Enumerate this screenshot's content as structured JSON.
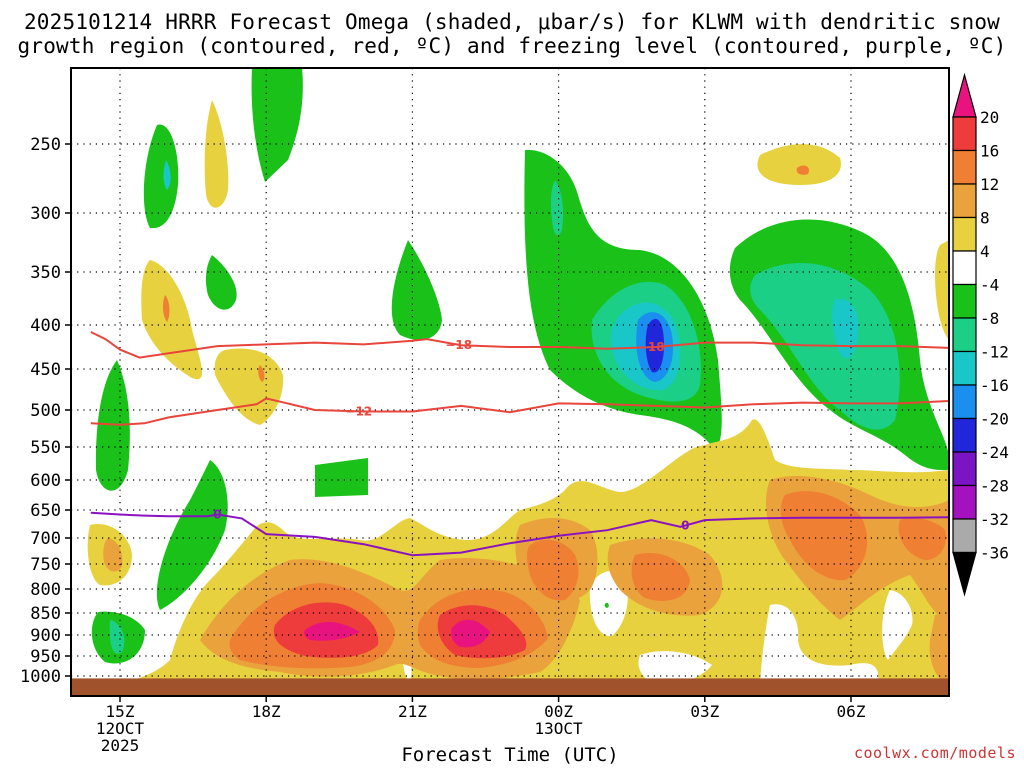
{
  "title_line1": "2025101214 HRRR Forecast Omega (shaded, μbar/s) for KLWM with dendritic snow",
  "title_line2": "growth region (contoured, red, ºC) and freezing level (contoured, purple, ºC)",
  "x_axis_title": "Forecast Time (UTC)",
  "credit": "coolwx.com/models",
  "chart_data": {
    "type": "heatmap",
    "title": "2025101214 HRRR Forecast Omega (shaded, μbar/s) for KLWM with dendritic snow growth region (contoured, red, ºC) and freezing level (contoured, purple, ºC)",
    "xlabel": "Forecast Time (UTC)",
    "ylabel": "",
    "y_scale": "pressure (inverted, log-like)",
    "y_ticks": [
      250,
      300,
      350,
      400,
      450,
      500,
      550,
      600,
      650,
      700,
      750,
      800,
      850,
      900,
      950,
      1000
    ],
    "y_range": [
      200,
      1025
    ],
    "x_range_hours": [
      14.4,
      32.8
    ],
    "x_ticks": [
      {
        "hour": 15,
        "label": "15Z",
        "sub": [
          "12OCT",
          "2025"
        ]
      },
      {
        "hour": 18,
        "label": "18Z",
        "sub": []
      },
      {
        "hour": 21,
        "label": "21Z",
        "sub": []
      },
      {
        "hour": 24,
        "label": "00Z",
        "sub": [
          "13OCT"
        ]
      },
      {
        "hour": 27,
        "label": "03Z",
        "sub": []
      },
      {
        "hour": 30,
        "label": "06Z",
        "sub": []
      }
    ],
    "grid": true,
    "colorbar": {
      "labels": [
        "20",
        "16",
        "12",
        "8",
        "4",
        "-4",
        "-8",
        "-12",
        "-16",
        "-20",
        "-24",
        "-28",
        "-32",
        "-36"
      ],
      "colors": [
        "#e8137e",
        "#ee3b3b",
        "#ef7f33",
        "#e9a23c",
        "#e7d13e",
        "#ffffff",
        "#19c119",
        "#1ccf86",
        "#19c7c9",
        "#1a8ff0",
        "#2226db",
        "#7a14c5",
        "#a412c0",
        "#aaaaaa",
        "#000000"
      ]
    },
    "contours": [
      {
        "name": "-18",
        "color": "#e8453c",
        "points": [
          [
            14.4,
            408
          ],
          [
            14.7,
            416
          ],
          [
            15.0,
            428
          ],
          [
            15.4,
            437
          ],
          [
            16.0,
            432
          ],
          [
            17.0,
            424
          ],
          [
            18.0,
            422
          ],
          [
            19.0,
            420
          ],
          [
            20.0,
            422
          ],
          [
            21.0,
            418
          ],
          [
            21.3,
            416
          ],
          [
            22.0,
            423
          ],
          [
            23.0,
            425
          ],
          [
            24.0,
            425
          ],
          [
            25.0,
            427
          ],
          [
            26.0,
            425
          ],
          [
            27.0,
            420
          ],
          [
            28.0,
            420
          ],
          [
            29.0,
            423
          ],
          [
            30.0,
            424
          ],
          [
            31.0,
            424
          ],
          [
            32.0,
            426
          ],
          [
            32.8,
            430
          ]
        ]
      },
      {
        "name": "-12",
        "color": "#e8453c",
        "points": [
          [
            14.4,
            518
          ],
          [
            15.0,
            520
          ],
          [
            15.5,
            518
          ],
          [
            16.0,
            510
          ],
          [
            17.0,
            500
          ],
          [
            17.8,
            493
          ],
          [
            18.0,
            486
          ],
          [
            18.3,
            490
          ],
          [
            19.0,
            500
          ],
          [
            20.0,
            502
          ],
          [
            21.0,
            502
          ],
          [
            22.0,
            495
          ],
          [
            23.0,
            503
          ],
          [
            24.0,
            492
          ],
          [
            25.0,
            493
          ],
          [
            26.0,
            495
          ],
          [
            27.0,
            497
          ],
          [
            28.0,
            493
          ],
          [
            29.0,
            491
          ],
          [
            30.0,
            492
          ],
          [
            31.0,
            492
          ],
          [
            32.0,
            489
          ],
          [
            32.8,
            480
          ]
        ]
      },
      {
        "name": "0",
        "color": "#8b12c0",
        "points": [
          [
            14.4,
            655
          ],
          [
            15.0,
            658
          ],
          [
            15.5,
            660
          ],
          [
            16.0,
            661
          ],
          [
            16.8,
            661
          ],
          [
            17.0,
            658
          ],
          [
            17.5,
            665
          ],
          [
            18.0,
            693
          ],
          [
            19.0,
            698
          ],
          [
            20.0,
            712
          ],
          [
            21.0,
            733
          ],
          [
            22.0,
            728
          ],
          [
            23.0,
            710
          ],
          [
            24.0,
            696
          ],
          [
            25.0,
            686
          ],
          [
            25.9,
            668
          ],
          [
            26.5,
            680
          ],
          [
            27.0,
            668
          ],
          [
            28.0,
            665
          ],
          [
            29.0,
            664
          ],
          [
            30.0,
            664
          ],
          [
            31.0,
            664
          ],
          [
            32.0,
            663
          ],
          [
            32.8,
            662
          ]
        ]
      }
    ],
    "surface": {
      "pressure_top": 1006,
      "color": "#a0522d"
    }
  }
}
